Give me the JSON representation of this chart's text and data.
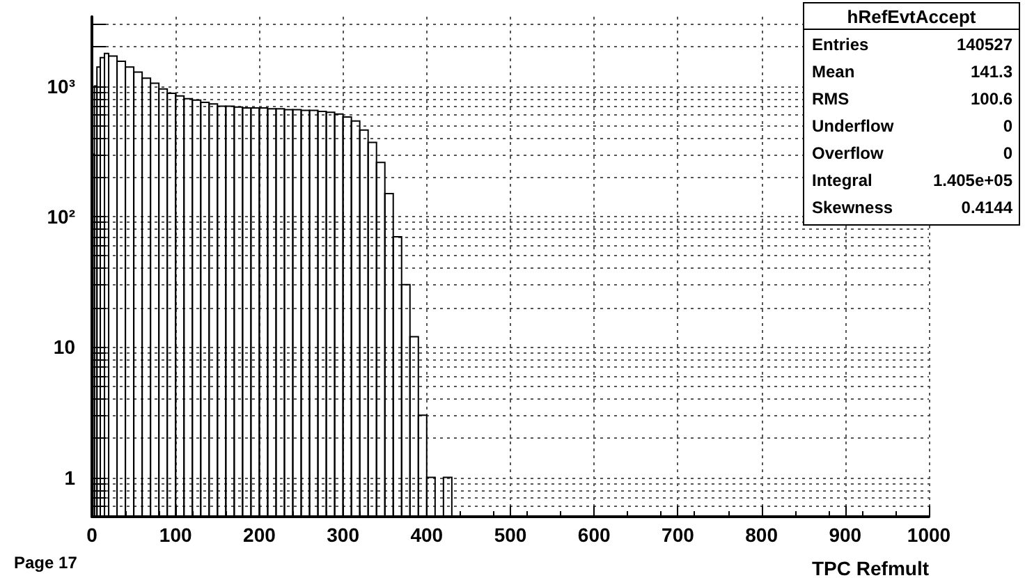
{
  "chart_data": {
    "type": "histogram",
    "title": "hRefEvtAccept",
    "xlabel": "TPC Refmult",
    "bins": [
      0,
      3,
      6,
      10,
      15,
      20,
      30,
      40,
      50,
      60,
      70,
      80,
      90,
      100,
      110,
      120,
      130,
      140,
      150,
      160,
      170,
      180,
      190,
      200,
      210,
      220,
      230,
      240,
      250,
      260,
      270,
      280,
      290,
      300,
      310,
      320,
      330,
      340,
      350,
      360,
      370,
      380,
      390,
      400,
      410,
      420,
      430
    ],
    "values": [
      300,
      1000,
      1400,
      1650,
      1780,
      1700,
      1550,
      1400,
      1280,
      1150,
      1050,
      950,
      880,
      840,
      800,
      780,
      750,
      730,
      700,
      700,
      690,
      680,
      680,
      680,
      670,
      670,
      660,
      660,
      650,
      650,
      640,
      630,
      610,
      580,
      540,
      460,
      370,
      260,
      150,
      70,
      30,
      12,
      3,
      1,
      null,
      1
    ],
    "color": "#000000",
    "log": "y",
    "grid": true,
    "xlim": [
      0,
      1000
    ],
    "xticks": [
      0,
      100,
      200,
      300,
      400,
      500,
      600,
      700,
      800,
      900,
      1000
    ],
    "ylim": [
      0.5,
      3400
    ],
    "yticks": [
      {
        "value": 0.6,
        "label": null
      },
      {
        "value": 0.7,
        "label": null
      },
      {
        "value": 0.8,
        "label": null
      },
      {
        "value": 0.9,
        "label": null
      },
      1,
      {
        "value": 2,
        "label": null
      },
      {
        "value": 3,
        "label": null
      },
      {
        "value": 4,
        "label": null
      },
      {
        "value": 5,
        "label": null
      },
      {
        "value": 6,
        "label": null
      },
      {
        "value": 7,
        "label": null
      },
      {
        "value": 8,
        "label": null
      },
      {
        "value": 9,
        "label": null
      },
      10,
      {
        "value": 20,
        "label": null
      },
      {
        "value": 30,
        "label": null
      },
      {
        "value": 40,
        "label": null
      },
      {
        "value": 50,
        "label": null
      },
      {
        "value": 60,
        "label": null
      },
      {
        "value": 70,
        "label": null
      },
      {
        "value": 80,
        "label": null
      },
      {
        "value": 90,
        "label": null
      },
      {
        "value": 100,
        "label": "10²"
      },
      {
        "value": 200,
        "label": null
      },
      {
        "value": 300,
        "label": null
      },
      {
        "value": 400,
        "label": null
      },
      {
        "value": 500,
        "label": null
      },
      {
        "value": 600,
        "label": null
      },
      {
        "value": 700,
        "label": null
      },
      {
        "value": 800,
        "label": null
      },
      {
        "value": 900,
        "label": null
      },
      {
        "value": 1000,
        "label": "10³"
      },
      {
        "value": 2000,
        "label": null
      },
      {
        "value": 3000,
        "label": null
      }
    ],
    "annotations": [
      "Page 17",
      "Entries 140527",
      "Mean 141.3",
      "RMS 100.6",
      "Underflow 0",
      "Overflow 0",
      "Integral 1.405e+05",
      "Skewness 0.4144"
    ]
  }
}
